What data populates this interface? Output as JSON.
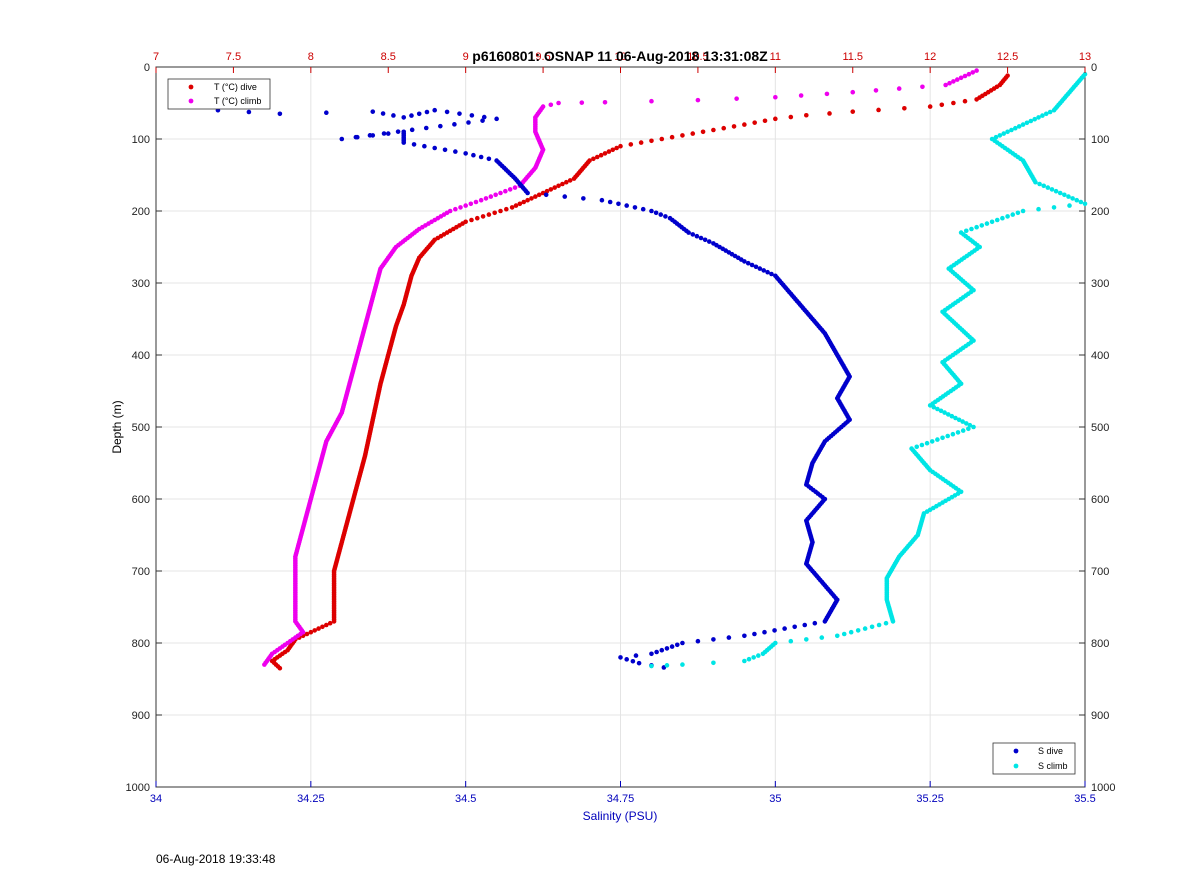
{
  "chart_data": {
    "type": "scatter",
    "title": "p6160801: OSNAP 11 06-Aug-2018 13:31:08Z",
    "xlabel": "Salinity (PSU)",
    "ylabel": "Depth (m)",
    "x_bottom": {
      "range": [
        34,
        35.5
      ],
      "ticks": [
        "34",
        "34.25",
        "34.5",
        "34.75",
        "35",
        "35.25",
        "35.5"
      ],
      "color": "#0000bb"
    },
    "x_top": {
      "range": [
        7,
        13
      ],
      "ticks": [
        "7",
        "7.5",
        "8",
        "8.5",
        "9",
        "9.5",
        "10",
        "10.5",
        "11",
        "11.5",
        "12",
        "12.5",
        "13"
      ],
      "color": "#cc0000"
    },
    "y": {
      "range": [
        1000,
        0
      ],
      "reversed": true,
      "ticks": [
        "0",
        "100",
        "200",
        "300",
        "400",
        "500",
        "600",
        "700",
        "800",
        "900",
        "1000"
      ]
    },
    "grid": true,
    "legend_top": {
      "placement": "top-left",
      "entries": [
        "T (°C) dive",
        "T (°C) climb"
      ]
    },
    "legend_bottom": {
      "placement": "bottom-right",
      "entries": [
        "S dive",
        "S climb"
      ]
    },
    "series": [
      {
        "name": "T (°C) dive",
        "axis": "top",
        "color": "#dd0000",
        "points": [
          [
            12.5,
            12
          ],
          [
            12.45,
            25
          ],
          [
            12.3,
            45
          ],
          [
            12.0,
            55
          ],
          [
            11.5,
            62
          ],
          [
            11.2,
            67
          ],
          [
            11.0,
            72
          ],
          [
            10.8,
            80
          ],
          [
            10.4,
            95
          ],
          [
            10.0,
            110
          ],
          [
            9.8,
            130
          ],
          [
            9.7,
            155
          ],
          [
            9.5,
            175
          ],
          [
            9.3,
            195
          ],
          [
            9.0,
            215
          ],
          [
            8.8,
            240
          ],
          [
            8.7,
            265
          ],
          [
            8.65,
            290
          ],
          [
            8.6,
            330
          ],
          [
            8.55,
            360
          ],
          [
            8.5,
            400
          ],
          [
            8.45,
            440
          ],
          [
            8.4,
            490
          ],
          [
            8.35,
            540
          ],
          [
            8.3,
            580
          ],
          [
            8.25,
            620
          ],
          [
            8.2,
            660
          ],
          [
            8.15,
            700
          ],
          [
            8.15,
            740
          ],
          [
            8.15,
            770
          ],
          [
            8.0,
            785
          ],
          [
            7.9,
            795
          ],
          [
            7.85,
            810
          ],
          [
            7.75,
            825
          ],
          [
            7.8,
            835
          ]
        ]
      },
      {
        "name": "T (°C) climb",
        "axis": "top",
        "color": "#ee00ee",
        "points": [
          [
            12.3,
            5
          ],
          [
            12.1,
            25
          ],
          [
            11.5,
            35
          ],
          [
            11.0,
            42
          ],
          [
            10.5,
            46
          ],
          [
            9.9,
            49
          ],
          [
            9.6,
            50
          ],
          [
            9.5,
            55
          ],
          [
            9.45,
            70
          ],
          [
            9.45,
            90
          ],
          [
            9.5,
            115
          ],
          [
            9.45,
            140
          ],
          [
            9.35,
            165
          ],
          [
            9.1,
            185
          ],
          [
            8.9,
            200
          ],
          [
            8.7,
            225
          ],
          [
            8.55,
            250
          ],
          [
            8.45,
            280
          ],
          [
            8.4,
            320
          ],
          [
            8.35,
            360
          ],
          [
            8.3,
            400
          ],
          [
            8.25,
            440
          ],
          [
            8.2,
            480
          ],
          [
            8.1,
            520
          ],
          [
            8.05,
            560
          ],
          [
            8.0,
            600
          ],
          [
            7.95,
            640
          ],
          [
            7.9,
            680
          ],
          [
            7.9,
            720
          ],
          [
            7.9,
            770
          ],
          [
            7.95,
            785
          ],
          [
            7.85,
            800
          ],
          [
            7.75,
            815
          ],
          [
            7.7,
            830
          ]
        ]
      },
      {
        "name": "S dive",
        "axis": "bottom",
        "color": "#0000cc",
        "points": [
          [
            34.1,
            60
          ],
          [
            34.2,
            65
          ],
          [
            34.35,
            62
          ],
          [
            34.4,
            70
          ],
          [
            34.45,
            60
          ],
          [
            34.55,
            72
          ],
          [
            34.3,
            100
          ],
          [
            34.4,
            90
          ],
          [
            34.4,
            105
          ],
          [
            34.5,
            120
          ],
          [
            34.55,
            130
          ],
          [
            34.58,
            155
          ],
          [
            34.6,
            175
          ],
          [
            34.72,
            185
          ],
          [
            34.8,
            200
          ],
          [
            34.83,
            210
          ],
          [
            34.86,
            230
          ],
          [
            34.9,
            245
          ],
          [
            34.95,
            270
          ],
          [
            35.0,
            290
          ],
          [
            35.02,
            310
          ],
          [
            35.05,
            340
          ],
          [
            35.08,
            370
          ],
          [
            35.1,
            400
          ],
          [
            35.12,
            430
          ],
          [
            35.1,
            460
          ],
          [
            35.12,
            490
          ],
          [
            35.08,
            520
          ],
          [
            35.06,
            550
          ],
          [
            35.05,
            580
          ],
          [
            35.08,
            600
          ],
          [
            35.05,
            630
          ],
          [
            35.06,
            660
          ],
          [
            35.05,
            690
          ],
          [
            35.08,
            720
          ],
          [
            35.1,
            740
          ],
          [
            35.08,
            770
          ],
          [
            34.95,
            790
          ],
          [
            34.85,
            800
          ],
          [
            34.8,
            815
          ],
          [
            34.75,
            820
          ],
          [
            34.78,
            828
          ],
          [
            34.82,
            834
          ]
        ]
      },
      {
        "name": "S climb",
        "axis": "bottom",
        "color": "#00e5e5",
        "points": [
          [
            35.5,
            10
          ],
          [
            35.45,
            60
          ],
          [
            35.4,
            80
          ],
          [
            35.35,
            100
          ],
          [
            35.4,
            130
          ],
          [
            35.42,
            160
          ],
          [
            35.5,
            190
          ],
          [
            35.4,
            200
          ],
          [
            35.3,
            230
          ],
          [
            35.33,
            250
          ],
          [
            35.28,
            280
          ],
          [
            35.32,
            310
          ],
          [
            35.27,
            340
          ],
          [
            35.32,
            380
          ],
          [
            35.27,
            410
          ],
          [
            35.3,
            440
          ],
          [
            35.25,
            470
          ],
          [
            35.32,
            500
          ],
          [
            35.22,
            530
          ],
          [
            35.25,
            560
          ],
          [
            35.3,
            590
          ],
          [
            35.24,
            620
          ],
          [
            35.23,
            650
          ],
          [
            35.2,
            680
          ],
          [
            35.18,
            710
          ],
          [
            35.18,
            740
          ],
          [
            35.19,
            770
          ],
          [
            35.1,
            790
          ],
          [
            35.0,
            800
          ],
          [
            34.98,
            815
          ],
          [
            34.95,
            825
          ],
          [
            34.85,
            830
          ],
          [
            34.8,
            832
          ]
        ]
      }
    ]
  },
  "footer": {
    "timestamp": "06-Aug-2018 19:33:48"
  }
}
